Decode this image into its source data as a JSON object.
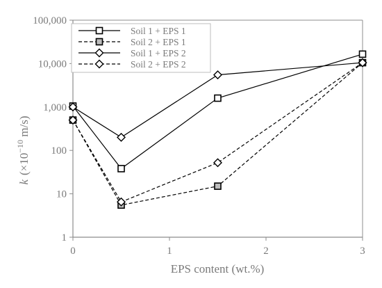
{
  "chart_data": {
    "type": "line",
    "xlabel": "EPS content (wt.%)",
    "ylabel_symbol": "k",
    "ylabel_unit": "(×10",
    "ylabel_exp": "−10",
    "ylabel_rest": " m/s)",
    "xlim": [
      0,
      3
    ],
    "ylim": [
      1,
      100000
    ],
    "yscale": "log",
    "x_ticks": [
      0,
      1,
      2,
      3
    ],
    "x_tick_labels": [
      "0",
      "1",
      "2",
      "3"
    ],
    "y_ticks": [
      1,
      10,
      100,
      1000,
      10000,
      100000
    ],
    "y_tick_labels": [
      "1",
      "10",
      "100",
      "1,000",
      "10,000",
      "100,000"
    ],
    "grid": false,
    "legend_position": "top-left",
    "series": [
      {
        "name": "Soil 1 + EPS 1",
        "x": [
          0,
          0.5,
          1.5,
          3
        ],
        "y": [
          1050,
          38,
          1600,
          16500
        ],
        "marker": "square",
        "marker_fill": "#ffffff",
        "line_style": "solid"
      },
      {
        "name": "Soil 2 + EPS 1",
        "x": [
          0,
          0.5,
          1.5,
          3
        ],
        "y": [
          500,
          5.5,
          15,
          10500
        ],
        "marker": "square",
        "marker_fill": "#bdbdbd",
        "line_style": "dashed"
      },
      {
        "name": "Soil 1 + EPS 2",
        "x": [
          0,
          0.5,
          1.5,
          3
        ],
        "y": [
          1000,
          200,
          5500,
          10500
        ],
        "marker": "diamond",
        "marker_fill": "#ffffff",
        "line_style": "solid"
      },
      {
        "name": "Soil 2 + EPS 2",
        "x": [
          0,
          0.5,
          1.5,
          3
        ],
        "y": [
          500,
          6.5,
          52,
          10500
        ],
        "marker": "diamond",
        "marker_fill": "#ffffff",
        "line_style": "dashed"
      }
    ]
  },
  "colors": {
    "line": "#000000",
    "axis": "#8c8c8c",
    "text": "#7a7a7a"
  }
}
